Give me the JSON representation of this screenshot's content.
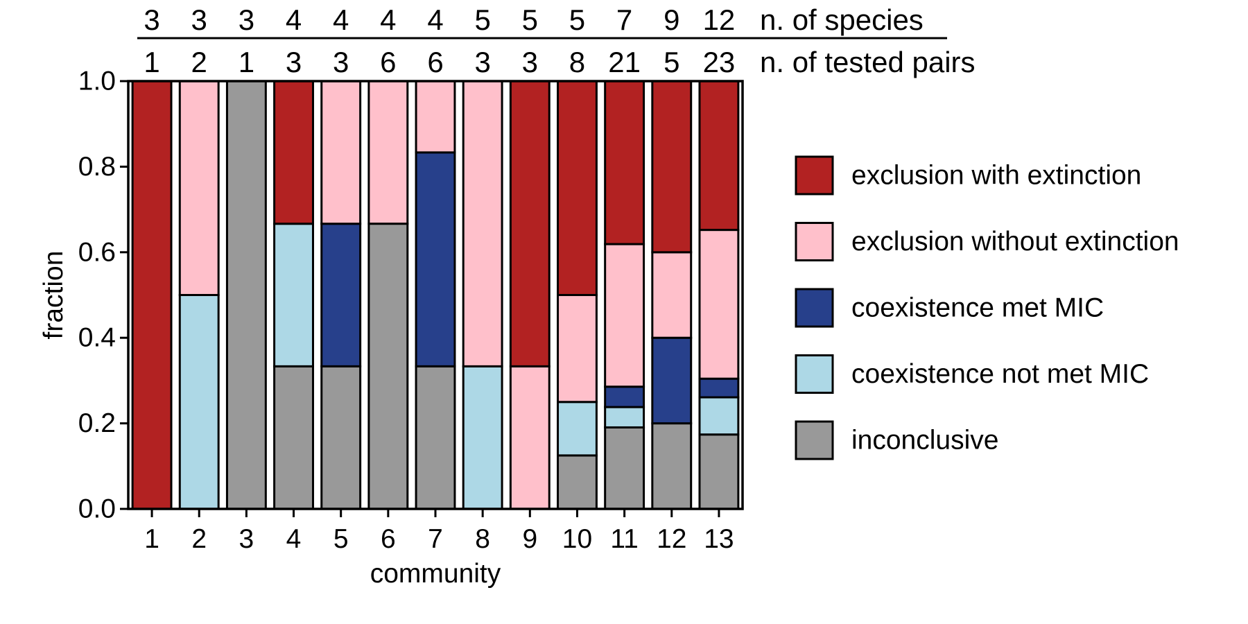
{
  "chart_data": {
    "type": "bar",
    "stacked": true,
    "xlabel": "community",
    "ylabel": "fraction",
    "ylim": [
      0,
      1
    ],
    "yticks": [
      "0.0",
      "0.2",
      "0.4",
      "0.6",
      "0.8",
      "1.0"
    ],
    "categories": [
      "1",
      "2",
      "3",
      "4",
      "5",
      "6",
      "7",
      "8",
      "9",
      "10",
      "11",
      "12",
      "13"
    ],
    "top_rows": [
      {
        "label": "n. of species",
        "values": [
          "3",
          "3",
          "3",
          "4",
          "4",
          "4",
          "4",
          "5",
          "5",
          "5",
          "7",
          "9",
          "12"
        ]
      },
      {
        "label": "n. of tested pairs",
        "values": [
          "1",
          "2",
          "1",
          "3",
          "3",
          "6",
          "6",
          "3",
          "3",
          "8",
          "21",
          "5",
          "23"
        ]
      }
    ],
    "series": [
      {
        "name": "inconclusive",
        "color": "#999999",
        "values": [
          0,
          0,
          1,
          0.3333,
          0.3333,
          0.6667,
          0.3333,
          0,
          0,
          0.125,
          0.1905,
          0.2,
          0.1739
        ]
      },
      {
        "name": "coexistence not met MIC",
        "color": "#ADD8E6",
        "values": [
          0,
          0.5,
          0,
          0.3333,
          0,
          0,
          0,
          0.3333,
          0,
          0.125,
          0.0476,
          0,
          0.087
        ]
      },
      {
        "name": "coexistence met MIC",
        "color": "#27408B",
        "values": [
          0,
          0,
          0,
          0,
          0.3333,
          0,
          0.5,
          0,
          0,
          0,
          0.0476,
          0.2,
          0.0435
        ]
      },
      {
        "name": "exclusion without extinction",
        "color": "#FFC0CB",
        "values": [
          0,
          0.5,
          0,
          0,
          0.3333,
          0.3333,
          0.1667,
          0.6667,
          0.3333,
          0.25,
          0.3333,
          0.2,
          0.3478
        ]
      },
      {
        "name": "exclusion with extinction",
        "color": "#B22222",
        "values": [
          1,
          0,
          0,
          0.3333,
          0,
          0,
          0,
          0,
          0.6667,
          0.5,
          0.381,
          0.4,
          0.3478
        ]
      }
    ],
    "legend_order": [
      "exclusion with extinction",
      "exclusion without extinction",
      "coexistence met MIC",
      "coexistence not met MIC",
      "inconclusive"
    ],
    "legend_position": "right",
    "grid": false
  }
}
